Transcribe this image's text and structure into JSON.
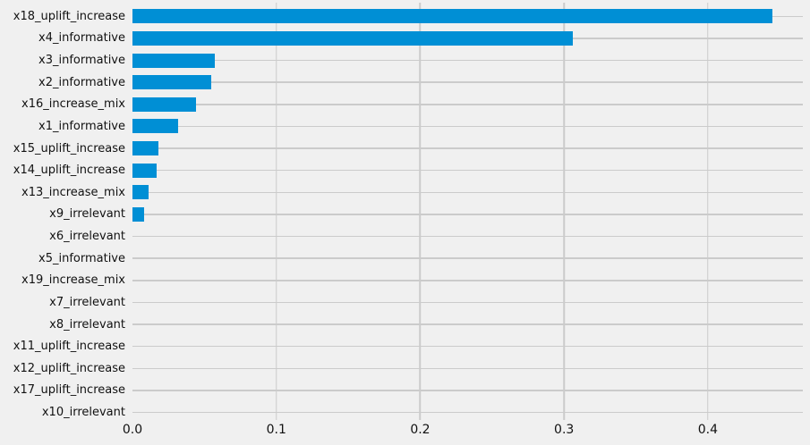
{
  "chart_data": {
    "type": "bar",
    "orientation": "horizontal",
    "title": "",
    "xlabel": "",
    "ylabel": "",
    "categories": [
      "x18_uplift_increase",
      "x4_informative",
      "x3_informative",
      "x2_informative",
      "x16_increase_mix",
      "x1_informative",
      "x15_uplift_increase",
      "x14_uplift_increase",
      "x13_increase_mix",
      "x9_irrelevant",
      "x6_irrelevant",
      "x5_informative",
      "x19_increase_mix",
      "x7_irrelevant",
      "x8_irrelevant",
      "x11_uplift_increase",
      "x12_uplift_increase",
      "x17_uplift_increase",
      "x10_irrelevant"
    ],
    "values": [
      0.445,
      0.306,
      0.057,
      0.055,
      0.044,
      0.032,
      0.018,
      0.017,
      0.011,
      0.008,
      0.0,
      0.0,
      0.0,
      0.0,
      0.0,
      0.0,
      0.0,
      0.0,
      0.0
    ],
    "xticks": [
      0.0,
      0.1,
      0.2,
      0.3,
      0.4
    ],
    "xtick_labels": [
      "0.0",
      "0.1",
      "0.2",
      "0.3",
      "0.4"
    ],
    "xlim": [
      0,
      0.466
    ],
    "grid": true,
    "legend": "none",
    "colors": {
      "bar": "#008fd5",
      "background": "#f0f0f0",
      "gridline": "#cbcbcb",
      "text": "#111111"
    }
  }
}
